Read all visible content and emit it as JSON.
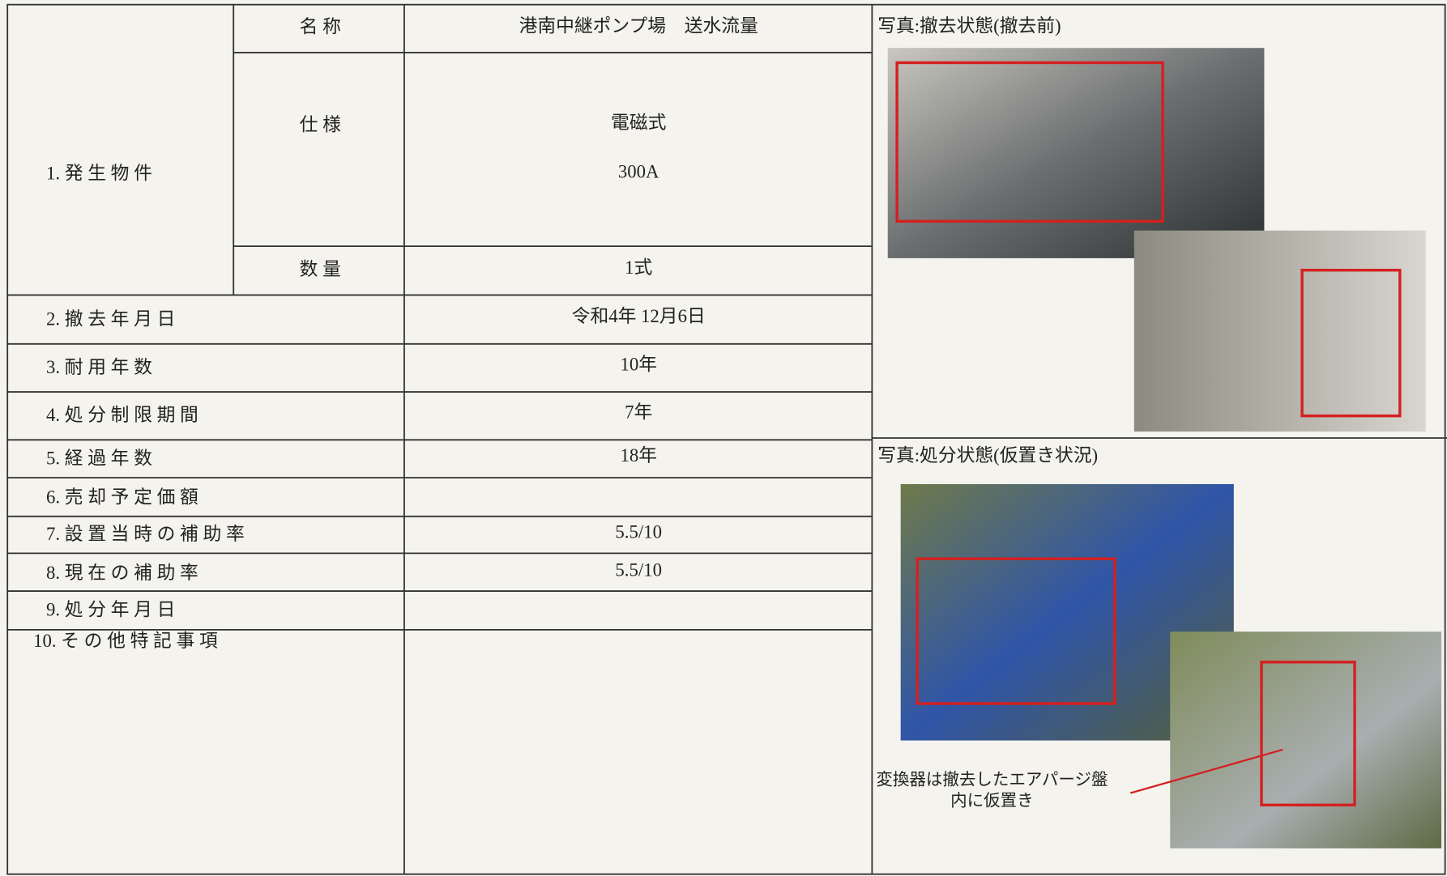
{
  "item1": {
    "label": "1. 発 生 物 件",
    "name": {
      "label": "名 称",
      "value": "港南中継ポンプ場　送水流量"
    },
    "spec": {
      "label": "仕 様",
      "values": [
        "電磁式",
        "300A"
      ]
    },
    "quantity": {
      "label": "数 量",
      "value": "1式"
    }
  },
  "rows": [
    {
      "label": "2. 撤 去 年 月 日",
      "value": "令和4年 12月6日"
    },
    {
      "label": "3. 耐 用 年 数",
      "value": "10年"
    },
    {
      "label": "4. 処 分 制 限 期 間",
      "value": "7年"
    },
    {
      "label": "5. 経 過 年 数",
      "value": "18年"
    },
    {
      "label": "6. 売 却 予 定 価 額"
    },
    {
      "label": "7. 設 置 当 時 の 補 助 率",
      "value": "5.5/10"
    },
    {
      "label": "8. 現 在 の 補 助 率",
      "value": "5.5/10"
    },
    {
      "label": "9. 処 分 年 月 日"
    },
    {
      "label": "10. そ の 他 特 記 事 項"
    }
  ],
  "photos": {
    "before_caption": "写真:撤去状態(撤去前)",
    "after_caption": "写真:処分状態(仮置き状況)",
    "note": [
      "変換器は撤去したエアパージ盤",
      "内に仮置き"
    ]
  }
}
